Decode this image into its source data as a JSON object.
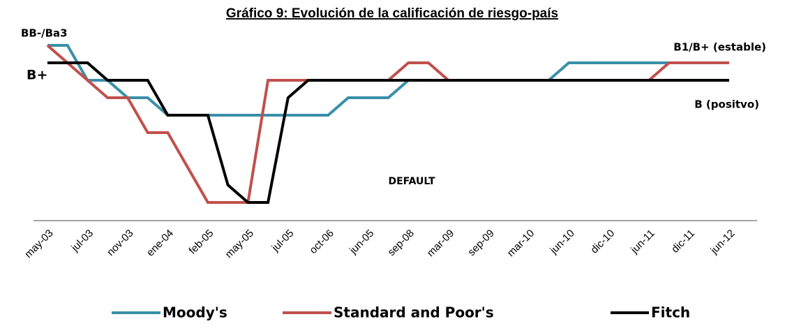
{
  "chart_data": {
    "type": "line",
    "title": "Gráfico 9: Evolución de la calificación de riesgo-país",
    "categories": [
      "may-03",
      null,
      "jul-03",
      null,
      "nov-03",
      null,
      "ene-04",
      null,
      "feb-05",
      null,
      "may-05",
      null,
      "jul-05",
      null,
      "oct-06",
      null,
      "jun-05",
      null,
      "sep-08",
      null,
      "mar-09",
      null,
      "sep-09",
      null,
      "mar-10",
      null,
      "jun-10",
      null,
      "dic-10",
      null,
      "jun-11",
      null,
      "dic-11",
      null,
      "jun-12"
    ],
    "series": [
      {
        "name": "Moody's",
        "color": "#3a8fa8",
        "values": [
          9,
          9,
          7,
          7,
          6,
          6,
          5,
          5,
          5,
          5,
          5,
          5,
          5,
          5,
          5,
          6,
          6,
          6,
          7,
          7,
          7,
          7,
          7,
          7,
          7,
          7,
          8,
          8,
          8,
          8,
          8,
          8,
          8,
          8,
          8
        ]
      },
      {
        "name": "Standard and Poor's",
        "color": "#c0504d",
        "values": [
          9,
          8,
          7,
          6,
          6,
          4,
          4,
          2,
          0,
          0,
          0,
          7,
          7,
          7,
          7,
          7,
          7,
          7,
          8,
          8,
          7,
          7,
          7,
          7,
          7,
          7,
          7,
          7,
          7,
          7,
          7,
          8,
          8,
          8,
          8
        ]
      },
      {
        "name": "Fitch",
        "color": "#000000",
        "values": [
          8,
          8,
          8,
          7,
          7,
          7,
          5,
          5,
          5,
          1,
          0,
          0,
          6,
          7,
          7,
          7,
          7,
          7,
          7,
          7,
          7,
          7,
          7,
          7,
          7,
          7,
          7,
          7,
          7,
          7,
          7,
          7,
          7,
          7,
          7
        ]
      }
    ],
    "ylim": [
      -1,
      10
    ],
    "annotations": [
      "BB-/Ba3",
      "B+",
      "B1/B+ (estable)",
      "B (positvo)",
      "DEFAULT"
    ],
    "legend": "bottom"
  }
}
